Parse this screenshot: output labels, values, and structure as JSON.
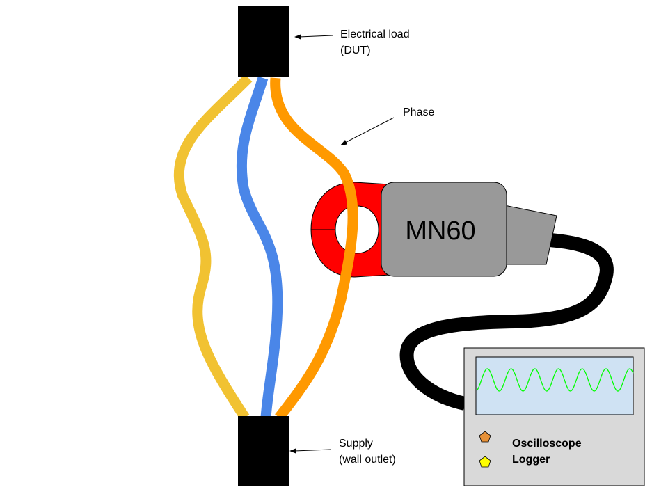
{
  "labels": {
    "load_line1": "Electrical load",
    "load_line2": "(DUT)",
    "phase": "Phase",
    "supply_line1": "Supply",
    "supply_line2": "(wall outlet)",
    "clamp_model": "MN60",
    "legend_oscilloscope": "Oscilloscope",
    "legend_logger": "Logger"
  },
  "colors": {
    "load_block": "#000000",
    "supply_block": "#000000",
    "wire_neutral": "#f1c232",
    "wire_earth": "#4a86e8",
    "wire_phase": "#ff9900",
    "clamp_jaw": "#ff0000",
    "clamp_body": "#999999",
    "cable": "#000000",
    "scope_panel": "#d9d9d9",
    "scope_screen": "#cfe2f3",
    "waveform": "#00ff00",
    "legend_oscilloscope_marker": "#e69138",
    "legend_logger_marker": "#ffff00"
  },
  "icons": {
    "oscilloscope_marker": "pentagon-icon",
    "logger_marker": "pentagon-icon"
  },
  "waveform": {
    "cycles": 6.6
  }
}
